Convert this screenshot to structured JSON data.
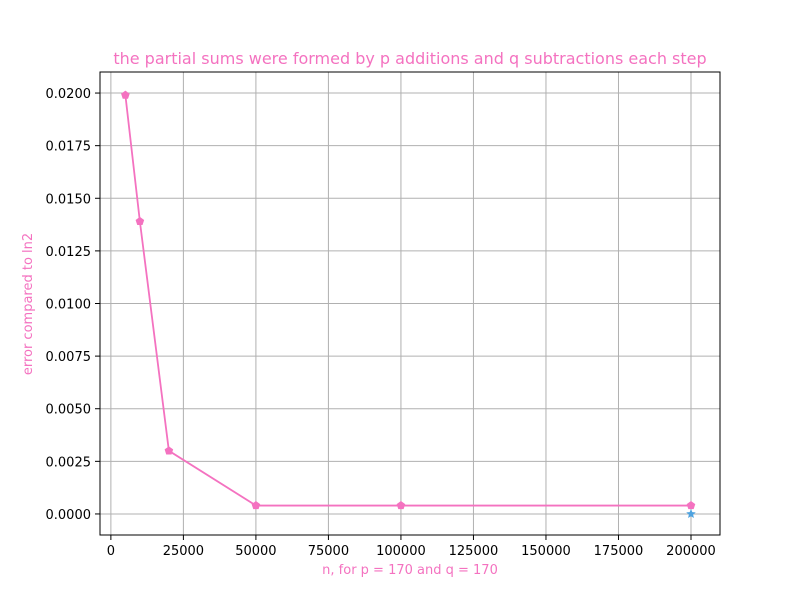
{
  "chart_data": {
    "type": "line",
    "title": "the partial sums were formed by p additions and q subtractions each step",
    "xlabel": "n, for p = 170 and q = 170",
    "ylabel": "error compared to ln2",
    "xlim": [
      -3750,
      210000
    ],
    "ylim": [
      -0.001,
      0.021
    ],
    "xticks": [
      0,
      25000,
      50000,
      75000,
      100000,
      125000,
      150000,
      175000,
      200000
    ],
    "xtick_labels": [
      "0",
      "25000",
      "50000",
      "75000",
      "100000",
      "125000",
      "150000",
      "175000",
      "200000"
    ],
    "yticks": [
      0.0,
      0.0025,
      0.005,
      0.0075,
      0.01,
      0.0125,
      0.015,
      0.0175,
      0.02
    ],
    "ytick_labels": [
      "0.0000",
      "0.0025",
      "0.0050",
      "0.0075",
      "0.0100",
      "0.0125",
      "0.0150",
      "0.0175",
      "0.0200"
    ],
    "grid": true,
    "series": [
      {
        "marker": "pentagon",
        "color": "#f472c0",
        "x": [
          5000,
          10000,
          20000,
          50000,
          100000,
          200000
        ],
        "y": [
          0.0199,
          0.0139,
          0.003,
          0.0004,
          0.0004,
          0.0004
        ]
      },
      {
        "marker": "star",
        "color": "#4fa3e0",
        "x": [
          200000
        ],
        "y": [
          0.0
        ]
      }
    ],
    "colors": {
      "text": "#f472c0",
      "grid": "#b0b0b0",
      "axes": "#000000"
    }
  }
}
